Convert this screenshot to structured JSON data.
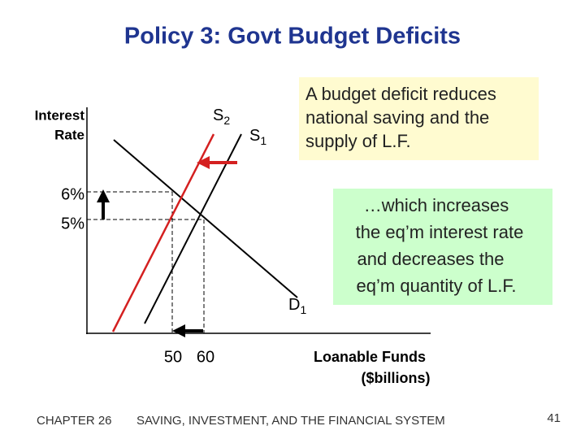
{
  "title": "Policy 3:  Govt Budget Deficits",
  "y_axis_label": [
    "Interest",
    "Rate"
  ],
  "x_axis_label": [
    "Loanable Funds",
    "($billions)"
  ],
  "y_ticks": [
    "6%",
    "5%"
  ],
  "x_ticks": [
    "50",
    "60"
  ],
  "curves": {
    "s2": {
      "letter": "S",
      "sub": "2"
    },
    "s1": {
      "letter": "S",
      "sub": "1"
    },
    "d1": {
      "letter": "D",
      "sub": "1"
    }
  },
  "note_1": [
    "A budget deficit reduces",
    "national saving and the",
    "supply of L.F."
  ],
  "note_2": [
    "…which increases",
    "the eq’m interest rate",
    "and decreases the",
    "eq’m quantity of L.F."
  ],
  "footer": {
    "chapter": "CHAPTER 26",
    "subject": "SAVING, INVESTMENT, AND THE FINANCIAL SYSTEM",
    "page": "41"
  }
}
